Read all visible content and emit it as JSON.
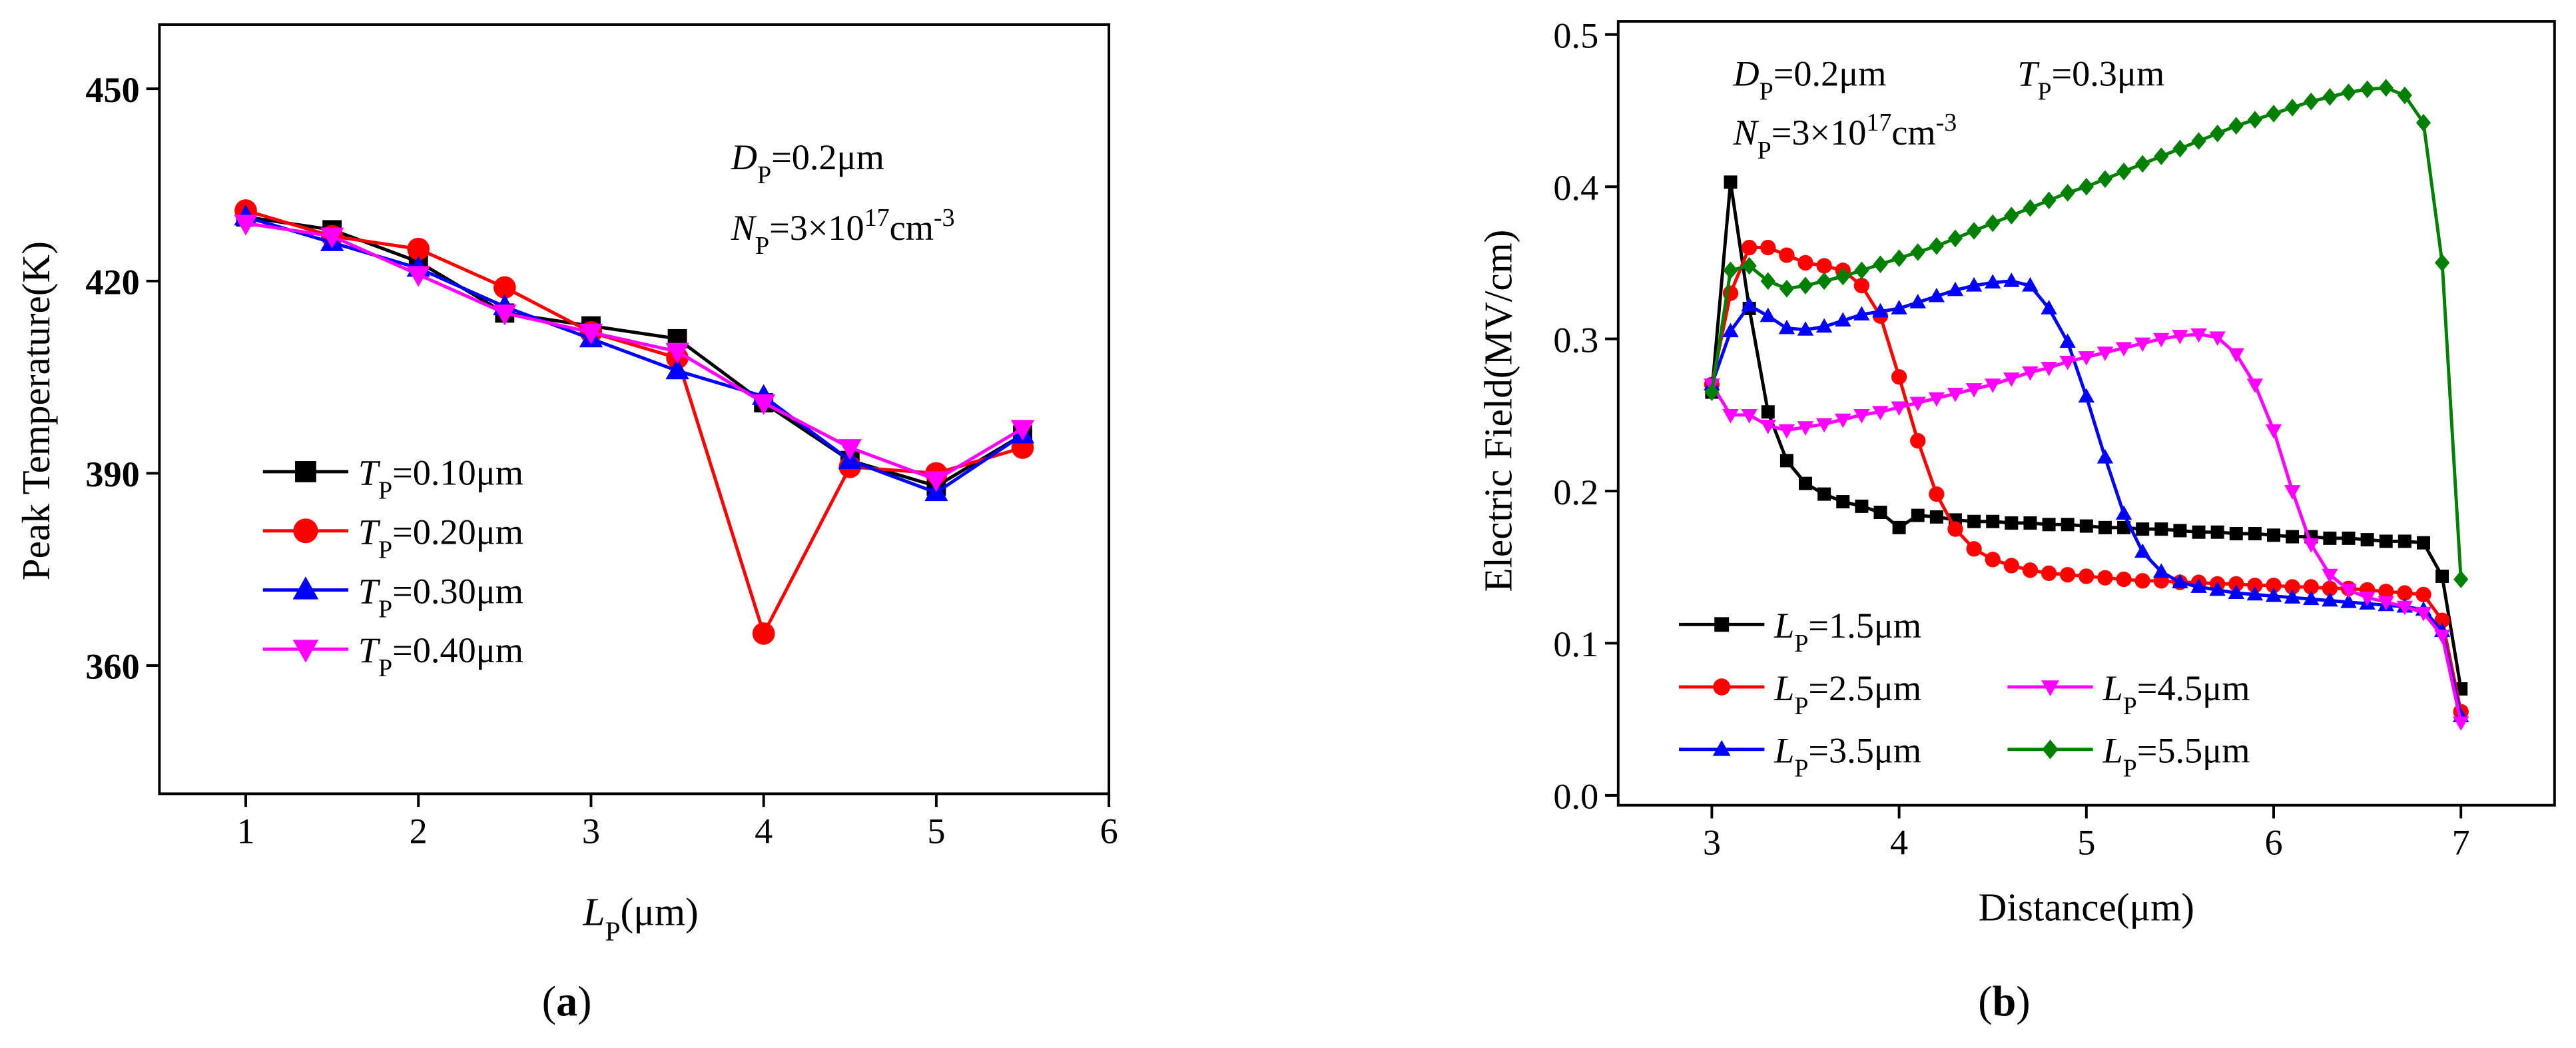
{
  "chart_data": [
    {
      "type": "line",
      "caption": {
        "parts": [
          "(",
          "a",
          ")"
        ],
        "styles": [
          "",
          "b",
          ""
        ]
      },
      "xlabel": {
        "parts": [
          "L",
          "P",
          "(μm)"
        ],
        "styles": [
          "i",
          "sub",
          ""
        ]
      },
      "ylabel": {
        "parts": [
          "Peak Temperature(K)"
        ],
        "styles": [
          ""
        ]
      },
      "annotations": [
        {
          "parts": [
            "D",
            "P",
            "=0.2μm"
          ],
          "styles": [
            "i",
            "sub",
            ""
          ]
        },
        {
          "parts": [
            "N",
            "P",
            "=3×10",
            "17",
            "cm",
            "-3"
          ],
          "styles": [
            "i",
            "sub",
            "",
            "sup",
            "",
            "sup"
          ]
        }
      ],
      "x": [
        1,
        1.5,
        2,
        2.5,
        3,
        3.5,
        4,
        4.5,
        5,
        5.5
      ],
      "xlim": [
        0.5,
        6
      ],
      "xticks": [
        1,
        2,
        3,
        4,
        5,
        6
      ],
      "ylim": [
        340,
        460
      ],
      "yticks": [
        360,
        390,
        420,
        450
      ],
      "series": [
        {
          "name": {
            "parts": [
              "T",
              "P",
              "=0.10μm"
            ],
            "styles": [
              "i",
              "sub",
              ""
            ]
          },
          "color": "#000000",
          "marker": "square",
          "values": [
            430,
            428,
            423,
            415,
            413,
            411,
            401,
            392,
            388,
            396
          ]
        },
        {
          "name": {
            "parts": [
              "T",
              "P",
              "=0.20μm"
            ],
            "styles": [
              "i",
              "sub",
              ""
            ]
          },
          "color": "#ff0000",
          "marker": "circle",
          "values": [
            431,
            427,
            425,
            419,
            412,
            408,
            365,
            391,
            390,
            394
          ]
        },
        {
          "name": {
            "parts": [
              "T",
              "P",
              "=0.30μm"
            ],
            "styles": [
              "i",
              "sub",
              ""
            ]
          },
          "color": "#0000ff",
          "marker": "triangle-up",
          "values": [
            430,
            426,
            422,
            416,
            411,
            406,
            402,
            392,
            387,
            396
          ]
        },
        {
          "name": {
            "parts": [
              "T",
              "P",
              "=0.40μm"
            ],
            "styles": [
              "i",
              "sub",
              ""
            ]
          },
          "color": "#ff00ff",
          "marker": "triangle-down",
          "values": [
            429,
            427,
            421,
            415,
            412,
            409,
            401,
            394,
            389,
            397
          ]
        }
      ]
    },
    {
      "type": "line",
      "caption": {
        "parts": [
          "(",
          "b",
          ")"
        ],
        "styles": [
          "",
          "b",
          ""
        ]
      },
      "xlabel": {
        "parts": [
          "Distance(μm)"
        ],
        "styles": [
          ""
        ]
      },
      "ylabel": {
        "parts": [
          "Electric Field(MV/cm)"
        ],
        "styles": [
          ""
        ]
      },
      "annotations": [
        {
          "parts": [
            "D",
            "P",
            "=0.2μm"
          ],
          "styles": [
            "i",
            "sub",
            ""
          ]
        },
        {
          "parts": [
            "T",
            "P",
            "=0.3μm"
          ],
          "styles": [
            "i",
            "sub",
            ""
          ]
        },
        {
          "parts": [
            "N",
            "P",
            "=3×10",
            "17",
            "cm",
            "-3"
          ],
          "styles": [
            "i",
            "sub",
            "",
            "sup",
            "",
            "sup"
          ]
        }
      ],
      "x": [
        3.0,
        3.1,
        3.2,
        3.3,
        3.4,
        3.5,
        3.6,
        3.7,
        3.8,
        3.9,
        4.0,
        4.1,
        4.2,
        4.3,
        4.4,
        4.5,
        4.6,
        4.7,
        4.8,
        4.9,
        5.0,
        5.1,
        5.2,
        5.3,
        5.4,
        5.5,
        5.6,
        5.7,
        5.8,
        5.9,
        6.0,
        6.1,
        6.2,
        6.3,
        6.4,
        6.5,
        6.6,
        6.7,
        6.8,
        6.9,
        7.0
      ],
      "xlim": [
        2.5,
        7.5
      ],
      "xticks": [
        3,
        4,
        5,
        6,
        7
      ],
      "ylim": [
        0,
        0.5
      ],
      "yticks": [
        {
          "value": 0,
          "label": "0.0"
        },
        0.1,
        0.2,
        0.3,
        0.4,
        0.5
      ],
      "series": [
        {
          "name": {
            "parts": [
              "L",
              "P",
              "=1.5μm"
            ],
            "styles": [
              "i",
              "sub",
              ""
            ]
          },
          "color": "#000000",
          "marker": "square",
          "values": [
            0.265,
            0.403,
            0.32,
            0.252,
            0.22,
            0.205,
            0.198,
            0.193,
            0.19,
            0.186,
            0.176,
            0.184,
            0.183,
            0.181,
            0.18,
            0.18,
            0.179,
            0.179,
            0.178,
            0.178,
            0.177,
            0.176,
            0.176,
            0.175,
            0.175,
            0.174,
            0.173,
            0.173,
            0.172,
            0.172,
            0.171,
            0.17,
            0.17,
            0.169,
            0.169,
            0.168,
            0.167,
            0.167,
            0.166,
            0.144,
            0.07
          ]
        },
        {
          "name": {
            "parts": [
              "L",
              "P",
              "=2.5μm"
            ],
            "styles": [
              "i",
              "sub",
              ""
            ]
          },
          "color": "#ff0000",
          "marker": "circle",
          "values": [
            0.27,
            0.33,
            0.36,
            0.36,
            0.355,
            0.35,
            0.348,
            0.345,
            0.335,
            0.315,
            0.275,
            0.233,
            0.198,
            0.175,
            0.162,
            0.155,
            0.151,
            0.148,
            0.146,
            0.145,
            0.144,
            0.143,
            0.142,
            0.141,
            0.141,
            0.14,
            0.14,
            0.139,
            0.139,
            0.138,
            0.138,
            0.137,
            0.137,
            0.136,
            0.136,
            0.135,
            0.134,
            0.133,
            0.132,
            0.115,
            0.055
          ]
        },
        {
          "name": {
            "parts": [
              "L",
              "P",
              "=3.5μm"
            ],
            "styles": [
              "i",
              "sub",
              ""
            ]
          },
          "color": "#0000ff",
          "marker": "triangle-up",
          "values": [
            0.27,
            0.305,
            0.322,
            0.315,
            0.307,
            0.306,
            0.308,
            0.312,
            0.316,
            0.318,
            0.32,
            0.324,
            0.328,
            0.332,
            0.335,
            0.337,
            0.338,
            0.335,
            0.32,
            0.298,
            0.262,
            0.222,
            0.185,
            0.16,
            0.147,
            0.14,
            0.137,
            0.135,
            0.133,
            0.132,
            0.131,
            0.13,
            0.129,
            0.128,
            0.127,
            0.126,
            0.125,
            0.124,
            0.122,
            0.108,
            0.052
          ]
        },
        {
          "name": {
            "parts": [
              "L",
              "P",
              "=4.5μm"
            ],
            "styles": [
              "i",
              "sub",
              ""
            ]
          },
          "color": "#ff00ff",
          "marker": "triangle-down",
          "values": [
            0.27,
            0.25,
            0.25,
            0.243,
            0.24,
            0.242,
            0.244,
            0.247,
            0.25,
            0.252,
            0.255,
            0.258,
            0.261,
            0.264,
            0.267,
            0.27,
            0.274,
            0.278,
            0.281,
            0.285,
            0.288,
            0.291,
            0.294,
            0.297,
            0.3,
            0.302,
            0.303,
            0.301,
            0.29,
            0.27,
            0.24,
            0.2,
            0.165,
            0.145,
            0.135,
            0.13,
            0.127,
            0.124,
            0.12,
            0.105,
            0.048
          ]
        },
        {
          "name": {
            "parts": [
              "L",
              "P",
              "=5.5μm"
            ],
            "styles": [
              "i",
              "sub",
              ""
            ]
          },
          "color": "#008000",
          "marker": "diamond",
          "values": [
            0.265,
            0.345,
            0.348,
            0.338,
            0.333,
            0.335,
            0.338,
            0.341,
            0.345,
            0.349,
            0.353,
            0.357,
            0.361,
            0.366,
            0.371,
            0.376,
            0.381,
            0.386,
            0.391,
            0.396,
            0.4,
            0.405,
            0.41,
            0.415,
            0.42,
            0.425,
            0.43,
            0.435,
            0.44,
            0.444,
            0.448,
            0.452,
            0.456,
            0.459,
            0.462,
            0.464,
            0.465,
            0.46,
            0.442,
            0.35,
            0.142
          ]
        }
      ]
    }
  ]
}
